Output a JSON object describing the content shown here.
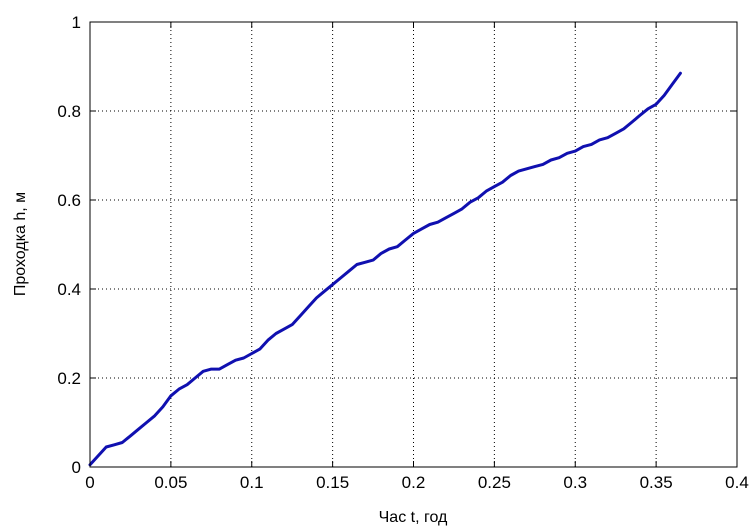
{
  "chart_data": {
    "type": "line",
    "title": "",
    "xlabel": "Час t, год",
    "ylabel": "Проходка h, м",
    "xlim": [
      0,
      0.4
    ],
    "ylim": [
      0,
      1
    ],
    "grid": true,
    "grid_style": "dotted",
    "x_ticks": [
      "0",
      "0.05",
      "0.1",
      "0.15",
      "0.2",
      "0.25",
      "0.3",
      "0.35",
      "0.4"
    ],
    "y_ticks": [
      "0",
      "0.2",
      "0.4",
      "0.6",
      "0.8",
      "1"
    ],
    "series": [
      {
        "color": "#1010b0",
        "x": [
          0,
          0.005,
          0.01,
          0.015,
          0.02,
          0.025,
          0.03,
          0.035,
          0.04,
          0.045,
          0.05,
          0.055,
          0.06,
          0.065,
          0.07,
          0.075,
          0.08,
          0.085,
          0.09,
          0.095,
          0.1,
          0.105,
          0.11,
          0.115,
          0.12,
          0.125,
          0.13,
          0.135,
          0.14,
          0.145,
          0.15,
          0.155,
          0.16,
          0.165,
          0.17,
          0.175,
          0.18,
          0.185,
          0.19,
          0.195,
          0.2,
          0.205,
          0.21,
          0.215,
          0.22,
          0.225,
          0.23,
          0.235,
          0.24,
          0.245,
          0.25,
          0.255,
          0.26,
          0.265,
          0.27,
          0.275,
          0.28,
          0.285,
          0.29,
          0.295,
          0.3,
          0.305,
          0.31,
          0.315,
          0.32,
          0.325,
          0.33,
          0.335,
          0.34,
          0.345,
          0.35,
          0.355,
          0.36,
          0.365
        ],
        "y": [
          0.005,
          0.025,
          0.045,
          0.05,
          0.055,
          0.07,
          0.085,
          0.1,
          0.115,
          0.135,
          0.16,
          0.175,
          0.185,
          0.2,
          0.215,
          0.22,
          0.22,
          0.23,
          0.24,
          0.245,
          0.255,
          0.265,
          0.285,
          0.3,
          0.31,
          0.32,
          0.34,
          0.36,
          0.38,
          0.395,
          0.41,
          0.425,
          0.44,
          0.455,
          0.46,
          0.465,
          0.48,
          0.49,
          0.495,
          0.51,
          0.525,
          0.535,
          0.545,
          0.55,
          0.56,
          0.57,
          0.58,
          0.595,
          0.605,
          0.62,
          0.63,
          0.64,
          0.655,
          0.665,
          0.67,
          0.675,
          0.68,
          0.69,
          0.695,
          0.705,
          0.71,
          0.72,
          0.725,
          0.735,
          0.74,
          0.75,
          0.76,
          0.775,
          0.79,
          0.805,
          0.815,
          0.835,
          0.86,
          0.885
        ]
      }
    ]
  }
}
